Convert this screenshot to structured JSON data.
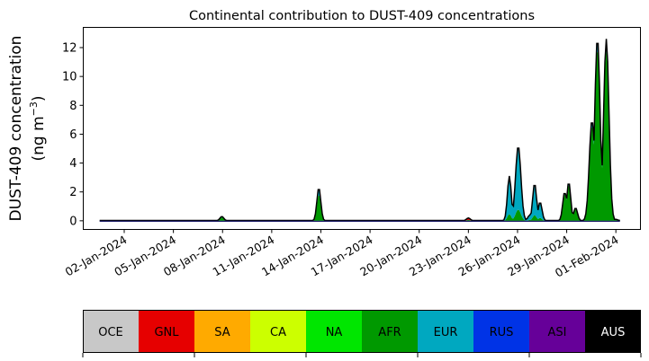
{
  "chart_data": {
    "type": "area",
    "title": "Continental contribution to DUST-409 concentrations",
    "xlabel": "",
    "ylabel_line1": "DUST-409 concentration",
    "ylabel_line2_prefix": "(ng m",
    "ylabel_line2_sup": "−3",
    "ylabel_line2_suffix": ")",
    "xlim": [
      "2023-12-30T12:00",
      "2024-02-02T12:00"
    ],
    "ylim": [
      -0.6,
      13.4
    ],
    "yticks": [
      0,
      2,
      4,
      6,
      8,
      10,
      12
    ],
    "xticks": [
      {
        "date": "2024-01-02",
        "label": "02-Jan-2024"
      },
      {
        "date": "2024-01-05",
        "label": "05-Jan-2024"
      },
      {
        "date": "2024-01-08",
        "label": "08-Jan-2024"
      },
      {
        "date": "2024-01-11",
        "label": "11-Jan-2024"
      },
      {
        "date": "2024-01-14",
        "label": "14-Jan-2024"
      },
      {
        "date": "2024-01-17",
        "label": "17-Jan-2024"
      },
      {
        "date": "2024-01-20",
        "label": "20-Jan-2024"
      },
      {
        "date": "2024-01-23",
        "label": "23-Jan-2024"
      },
      {
        "date": "2024-01-26",
        "label": "26-Jan-2024"
      },
      {
        "date": "2024-01-29",
        "label": "29-Jan-2024"
      },
      {
        "date": "2024-02-01",
        "label": "01-Feb-2024"
      }
    ],
    "total_peaks": [
      {
        "date": "2024-01-07T23:00",
        "value": 0.3
      },
      {
        "date": "2024-01-13T21:00",
        "value": 2.3
      },
      {
        "date": "2024-01-23T00:00",
        "value": 0.2
      },
      {
        "date": "2024-01-25T12:00",
        "value": 3.1
      },
      {
        "date": "2024-01-26T01:00",
        "value": 5.2
      },
      {
        "date": "2024-01-26T18:00",
        "value": 0.4
      },
      {
        "date": "2024-01-27T01:00",
        "value": 2.6
      },
      {
        "date": "2024-01-27T09:00",
        "value": 1.3
      },
      {
        "date": "2024-01-28T21:00",
        "value": 2.0
      },
      {
        "date": "2024-01-29T03:00",
        "value": 2.7
      },
      {
        "date": "2024-01-29T13:00",
        "value": 0.9
      },
      {
        "date": "2024-01-30T13:00",
        "value": 7.0
      },
      {
        "date": "2024-01-30T21:00",
        "value": 12.7
      },
      {
        "date": "2024-01-31T10:00",
        "value": 12.6
      },
      {
        "date": "2024-02-01T00:00",
        "value": 0.1
      }
    ],
    "legend": [
      {
        "code": "OCE",
        "color": "#c8c8c8",
        "text_color": "#000000"
      },
      {
        "code": "GNL",
        "color": "#e60000",
        "text_color": "#000000"
      },
      {
        "code": "SA",
        "color": "#ffaa00",
        "text_color": "#000000"
      },
      {
        "code": "CA",
        "color": "#ccff00",
        "text_color": "#000000"
      },
      {
        "code": "NA",
        "color": "#00e600",
        "text_color": "#000000"
      },
      {
        "code": "AFR",
        "color": "#009900",
        "text_color": "#000000"
      },
      {
        "code": "EUR",
        "color": "#00a8c0",
        "text_color": "#000000"
      },
      {
        "code": "RUS",
        "color": "#0033e6",
        "text_color": "#000000"
      },
      {
        "code": "ASI",
        "color": "#660099",
        "text_color": "#000000"
      },
      {
        "code": "AUS",
        "color": "#000000",
        "text_color": "#ffffff"
      }
    ]
  }
}
